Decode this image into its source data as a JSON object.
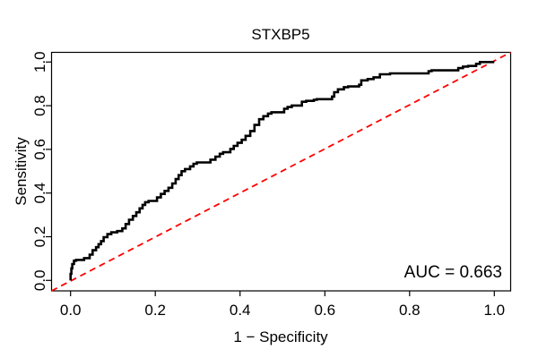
{
  "title": "STXBP5",
  "annotation": {
    "auc_label": "AUC = 0.663"
  },
  "axes": {
    "x": {
      "label": "1 − Specificity",
      "ticks": [
        {
          "label": "0.0",
          "value": 0.0
        },
        {
          "label": "0.2",
          "value": 0.2
        },
        {
          "label": "0.4",
          "value": 0.4
        },
        {
          "label": "0.6",
          "value": 0.6
        },
        {
          "label": "0.8",
          "value": 0.8
        },
        {
          "label": "1.0",
          "value": 1.0
        }
      ]
    },
    "y": {
      "label": "Sensitivity",
      "ticks": [
        {
          "label": "0.0",
          "value": 0.0
        },
        {
          "label": "0.2",
          "value": 0.2
        },
        {
          "label": "0.4",
          "value": 0.4
        },
        {
          "label": "0.6",
          "value": 0.6
        },
        {
          "label": "0.8",
          "value": 0.8
        },
        {
          "label": "1.0",
          "value": 1.0
        }
      ]
    }
  },
  "colors": {
    "roc_curve": "#000000",
    "chance_line": "#FF0000",
    "box": "#000000",
    "text": "#000000",
    "background": "#FFFFFF"
  },
  "chart_data": {
    "type": "line",
    "title": "STXBP5",
    "xlabel": "1 − Specificity",
    "ylabel": "Sensitivity",
    "xlim": [
      0,
      1
    ],
    "ylim": [
      0,
      1
    ],
    "grid": false,
    "legend": null,
    "annotations": [
      "AUC = 0.663"
    ],
    "auc": 0.663,
    "series": [
      {
        "name": "ROC curve",
        "style": "step",
        "color": "#000000",
        "line_width": 2.6,
        "points": [
          [
            0.0,
            0.0
          ],
          [
            0.002,
            0.03
          ],
          [
            0.004,
            0.055
          ],
          [
            0.008,
            0.075
          ],
          [
            0.013,
            0.09
          ],
          [
            0.032,
            0.094
          ],
          [
            0.045,
            0.102
          ],
          [
            0.052,
            0.118
          ],
          [
            0.06,
            0.138
          ],
          [
            0.066,
            0.152
          ],
          [
            0.072,
            0.166
          ],
          [
            0.078,
            0.18
          ],
          [
            0.087,
            0.198
          ],
          [
            0.096,
            0.212
          ],
          [
            0.11,
            0.22
          ],
          [
            0.122,
            0.226
          ],
          [
            0.13,
            0.238
          ],
          [
            0.138,
            0.258
          ],
          [
            0.147,
            0.278
          ],
          [
            0.155,
            0.295
          ],
          [
            0.163,
            0.312
          ],
          [
            0.17,
            0.33
          ],
          [
            0.176,
            0.346
          ],
          [
            0.184,
            0.358
          ],
          [
            0.204,
            0.364
          ],
          [
            0.213,
            0.38
          ],
          [
            0.222,
            0.396
          ],
          [
            0.231,
            0.41
          ],
          [
            0.24,
            0.424
          ],
          [
            0.248,
            0.444
          ],
          [
            0.255,
            0.464
          ],
          [
            0.262,
            0.482
          ],
          [
            0.27,
            0.5
          ],
          [
            0.282,
            0.51
          ],
          [
            0.29,
            0.522
          ],
          [
            0.298,
            0.534
          ],
          [
            0.33,
            0.54
          ],
          [
            0.342,
            0.553
          ],
          [
            0.352,
            0.567
          ],
          [
            0.36,
            0.58
          ],
          [
            0.377,
            0.587
          ],
          [
            0.385,
            0.602
          ],
          [
            0.394,
            0.616
          ],
          [
            0.404,
            0.63
          ],
          [
            0.413,
            0.644
          ],
          [
            0.424,
            0.662
          ],
          [
            0.434,
            0.684
          ],
          [
            0.445,
            0.712
          ],
          [
            0.455,
            0.738
          ],
          [
            0.466,
            0.752
          ],
          [
            0.474,
            0.764
          ],
          [
            0.504,
            0.77
          ],
          [
            0.512,
            0.786
          ],
          [
            0.522,
            0.794
          ],
          [
            0.546,
            0.801
          ],
          [
            0.556,
            0.818
          ],
          [
            0.574,
            0.822
          ],
          [
            0.581,
            0.827
          ],
          [
            0.617,
            0.83
          ],
          [
            0.622,
            0.842
          ],
          [
            0.631,
            0.862
          ],
          [
            0.645,
            0.875
          ],
          [
            0.655,
            0.885
          ],
          [
            0.681,
            0.888
          ],
          [
            0.686,
            0.896
          ],
          [
            0.701,
            0.916
          ],
          [
            0.715,
            0.922
          ],
          [
            0.73,
            0.93
          ],
          [
            0.754,
            0.944
          ],
          [
            0.845,
            0.948
          ],
          [
            0.852,
            0.958
          ],
          [
            0.915,
            0.962
          ],
          [
            0.926,
            0.972
          ],
          [
            0.938,
            0.979
          ],
          [
            0.957,
            0.982
          ],
          [
            0.966,
            0.992
          ],
          [
            0.976,
            1.0
          ],
          [
            1.0,
            1.0
          ]
        ]
      },
      {
        "name": "chance diagonal",
        "style": "dashed",
        "color": "#FF0000",
        "line_width": 1.8,
        "points": [
          [
            0,
            0
          ],
          [
            1,
            1
          ]
        ]
      }
    ]
  }
}
